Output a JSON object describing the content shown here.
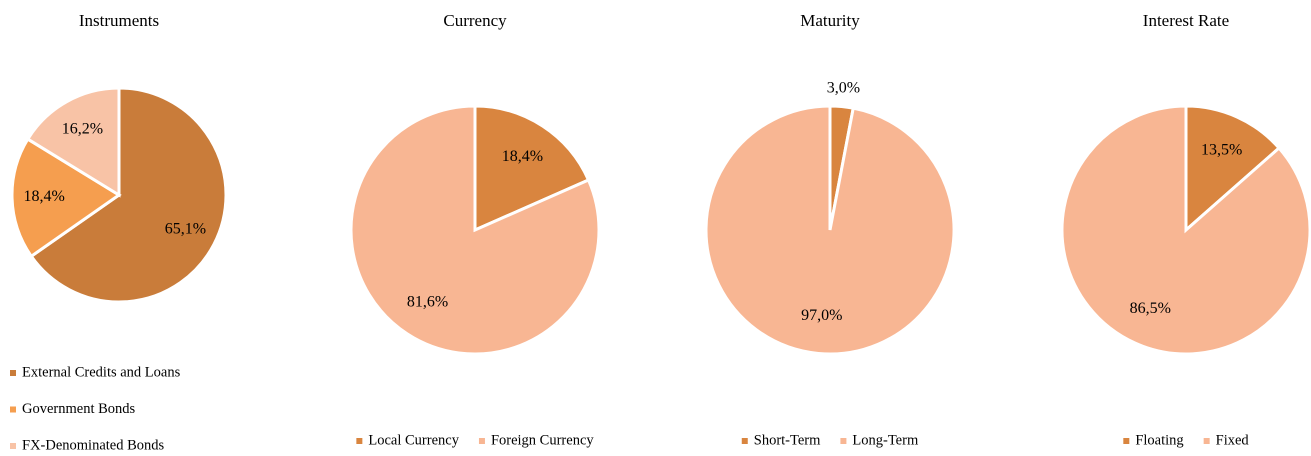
{
  "chart_data": [
    {
      "type": "pie",
      "title": "Instruments",
      "categories": [
        "External Credits and Loans",
        "Government Bonds",
        "FX-Denominated Bonds"
      ],
      "values": [
        65.1,
        18.4,
        16.2
      ],
      "value_labels": [
        "65,1%",
        "18,4%",
        "16,2%"
      ],
      "colors": [
        "#c97c3a",
        "#f59e4f",
        "#f8c3a6"
      ]
    },
    {
      "type": "pie",
      "title": "Currency",
      "categories": [
        "Local Currency",
        "Foreign Currency"
      ],
      "values": [
        18.4,
        81.6
      ],
      "value_labels": [
        "18,4%",
        "81,6%"
      ],
      "colors": [
        "#d9853f",
        "#f8b693"
      ]
    },
    {
      "type": "pie",
      "title": "Maturity",
      "categories": [
        "Short-Term",
        "Long-Term"
      ],
      "values": [
        3.0,
        97.0
      ],
      "value_labels": [
        "3,0%",
        "97,0%"
      ],
      "colors": [
        "#d9853f",
        "#f8b693"
      ]
    },
    {
      "type": "pie",
      "title": "Interest Rate",
      "categories": [
        "Floating",
        "Fixed"
      ],
      "values": [
        13.5,
        86.5
      ],
      "value_labels": [
        "13,5%",
        "86,5%"
      ],
      "colors": [
        "#d9853f",
        "#f8b693"
      ]
    }
  ]
}
